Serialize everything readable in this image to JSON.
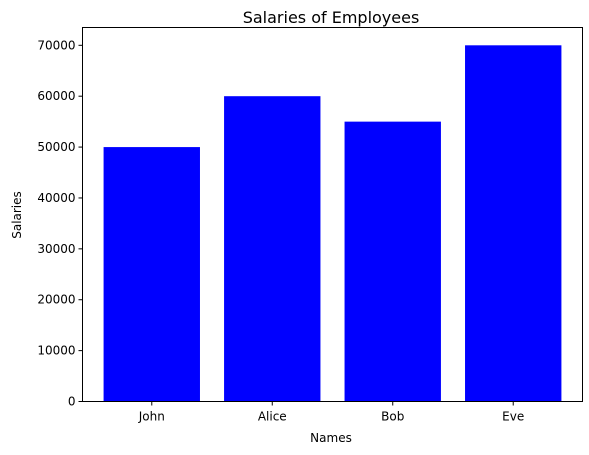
{
  "chart_data": {
    "type": "bar",
    "title": "Salaries of Employees",
    "xlabel": "Names",
    "ylabel": "Salaries",
    "categories": [
      "John",
      "Alice",
      "Bob",
      "Eve"
    ],
    "values": [
      50000,
      60000,
      55000,
      70000
    ],
    "ylim": [
      0,
      73500
    ],
    "yticks": [
      0,
      10000,
      20000,
      30000,
      40000,
      50000,
      60000,
      70000
    ],
    "bar_color": "#0000ff",
    "grid": false,
    "legend": false
  }
}
